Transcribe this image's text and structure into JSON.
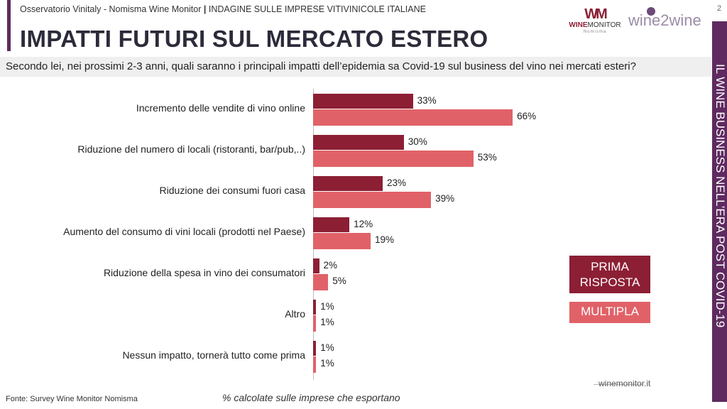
{
  "header": {
    "subtitle_left": "Osservatorio Vinitaly - Nomisma Wine Monitor",
    "subtitle_sep": "|",
    "subtitle_right": "INDAGINE SULLE IMPRESE VITIVINICOLE ITALIANE",
    "title": "IMPATTI FUTURI SUL MERCATO ESTERO",
    "page_number": "2"
  },
  "logos": {
    "winemonitor_mark": "WM",
    "winemonitor_bold": "WINE",
    "winemonitor_rest": "MONITOR",
    "winemonitor_sub": "Nomisma",
    "wine2wine": "wine2wine"
  },
  "question": "Secondo lei, nei prossimi 2-3 anni, quali saranno i principali impatti dell’epidemia sa Covid-19 sul business del vino nei mercati esteri?",
  "sidebar_text": "IL WINE BUSINESS NELL’ERA POST COVID-19",
  "footer": {
    "source": "Fonte: Survey Wine Monitor Nomisma",
    "note": "% calcolate sulle imprese che esportano",
    "site": "winemonitor.it"
  },
  "colors": {
    "prima": "#8c1f34",
    "multipla": "#e06268",
    "accent": "#5e2a5f"
  },
  "chart_data": {
    "type": "bar",
    "orientation": "horizontal",
    "categories": [
      "Incremento delle vendite di vino online",
      "Riduzione del numero di locali (ristoranti, bar/pub,..)",
      "Riduzione dei consumi fuori casa",
      "Aumento del consumo di vini locali (prodotti nel Paese)",
      "Riduzione della spesa in vino dei consumatori",
      "Altro",
      "Nessun impatto, tornerà  tutto come prima"
    ],
    "series": [
      {
        "name": "PRIMA RISPOSTA",
        "values": [
          33,
          30,
          23,
          12,
          2,
          1,
          1
        ],
        "labels": [
          "33%",
          "30%",
          "23%",
          "12%",
          "2%",
          "1%",
          "1%"
        ]
      },
      {
        "name": "MULTIPLA",
        "values": [
          66,
          53,
          39,
          19,
          5,
          1,
          1
        ],
        "labels": [
          "66%",
          "53%",
          "39%",
          "19%",
          "5%",
          "1%",
          "1%"
        ]
      }
    ],
    "unit": "%",
    "xlim": [
      0,
      70
    ],
    "legend_position": "right",
    "legend": {
      "prima_line1": "PRIMA",
      "prima_line2": "RISPOSTA",
      "multipla": "MULTIPLA"
    }
  }
}
